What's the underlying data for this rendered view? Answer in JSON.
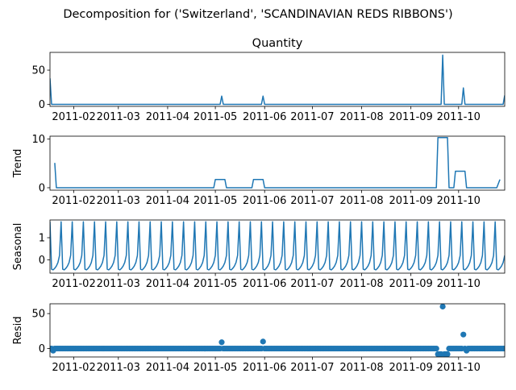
{
  "figure_title": "Decomposition for ('Switzerland', 'SCANDINAVIAN REDS RIBBONS')",
  "line_color": "#1f77b4",
  "chart_data": [
    {
      "type": "line",
      "panel": "observed",
      "title": "Quantity",
      "ylabel": "",
      "ylim": [
        -3,
        76
      ],
      "yticks": [
        0,
        50
      ],
      "xlim": [
        "2011-01-17",
        "2011-10-30"
      ],
      "xticks": [
        "2011-02",
        "2011-03",
        "2011-04",
        "2011-05",
        "2011-06",
        "2011-07",
        "2011-08",
        "2011-09",
        "2011-10"
      ],
      "points": [
        [
          "2011-01-17",
          38
        ],
        [
          "2011-01-18",
          0
        ],
        [
          "2011-05-04",
          0
        ],
        [
          "2011-05-05",
          12
        ],
        [
          "2011-05-06",
          0
        ],
        [
          "2011-05-30",
          0
        ],
        [
          "2011-05-31",
          12
        ],
        [
          "2011-06-01",
          0
        ],
        [
          "2011-09-20",
          0
        ],
        [
          "2011-09-21",
          72
        ],
        [
          "2011-09-22",
          0
        ],
        [
          "2011-10-03",
          0
        ],
        [
          "2011-10-04",
          24
        ],
        [
          "2011-10-05",
          0
        ],
        [
          "2011-10-29",
          0
        ],
        [
          "2011-10-30",
          13
        ]
      ]
    },
    {
      "type": "line",
      "panel": "trend",
      "title": "",
      "ylabel": "Trend",
      "ylim": [
        -0.5,
        10.6
      ],
      "yticks": [
        0,
        10
      ],
      "xlim": [
        "2011-01-17",
        "2011-10-30"
      ],
      "xticks": [
        "2011-02",
        "2011-03",
        "2011-04",
        "2011-05",
        "2011-06",
        "2011-07",
        "2011-08",
        "2011-09",
        "2011-10"
      ],
      "points": [
        [
          "2011-01-20",
          5.1
        ],
        [
          "2011-01-21",
          0
        ],
        [
          "2011-04-30",
          0
        ],
        [
          "2011-05-01",
          1.7
        ],
        [
          "2011-05-07",
          1.7
        ],
        [
          "2011-05-08",
          0
        ],
        [
          "2011-05-24",
          0
        ],
        [
          "2011-05-25",
          1.7
        ],
        [
          "2011-05-31",
          1.7
        ],
        [
          "2011-06-01",
          0
        ],
        [
          "2011-09-17",
          0
        ],
        [
          "2011-09-18",
          10.3
        ],
        [
          "2011-09-24",
          10.3
        ],
        [
          "2011-09-25",
          0
        ],
        [
          "2011-09-28",
          0
        ],
        [
          "2011-09-29",
          3.4
        ],
        [
          "2011-10-05",
          3.4
        ],
        [
          "2011-10-06",
          0
        ],
        [
          "2011-10-24",
          0
        ],
        [
          "2011-10-25",
          0
        ],
        [
          "2011-10-27",
          1.7
        ]
      ]
    },
    {
      "type": "line",
      "panel": "seasonal",
      "title": "",
      "ylabel": "Seasonal",
      "ylim": [
        -0.6,
        1.8
      ],
      "yticks": [
        0,
        1
      ],
      "xlim": [
        "2011-01-17",
        "2011-10-30"
      ],
      "xticks": [
        "2011-02",
        "2011-03",
        "2011-04",
        "2011-05",
        "2011-06",
        "2011-07",
        "2011-08",
        "2011-09",
        "2011-10"
      ],
      "period_days": 7,
      "peak_start": "2011-01-17",
      "pattern": [
        1.72,
        -0.42,
        -0.45,
        -0.38,
        -0.28,
        -0.12,
        0.2
      ],
      "end_value": 0.2
    },
    {
      "type": "scatter",
      "panel": "resid",
      "title": "",
      "ylabel": "Resid",
      "ylim": [
        -12,
        64
      ],
      "yticks": [
        0,
        50
      ],
      "xlim": [
        "2011-01-17",
        "2011-10-30"
      ],
      "xticks": [
        "2011-02",
        "2011-03",
        "2011-04",
        "2011-05",
        "2011-06",
        "2011-07",
        "2011-08",
        "2011-09",
        "2011-10"
      ],
      "baseline": 0,
      "outliers": [
        [
          "2011-01-19",
          -3
        ],
        [
          "2011-05-05",
          9
        ],
        [
          "2011-05-31",
          10
        ],
        [
          "2011-09-18",
          -8
        ],
        [
          "2011-09-19",
          -8
        ],
        [
          "2011-09-20",
          -8
        ],
        [
          "2011-09-21",
          60
        ],
        [
          "2011-09-22",
          -8
        ],
        [
          "2011-09-23",
          -8
        ],
        [
          "2011-09-24",
          -8
        ],
        [
          "2011-10-04",
          20
        ],
        [
          "2011-10-06",
          -3
        ]
      ]
    }
  ]
}
